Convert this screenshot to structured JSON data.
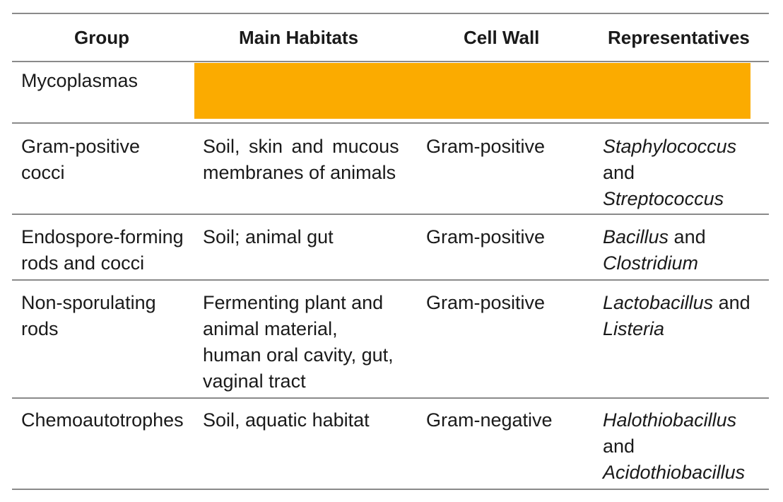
{
  "headers": {
    "group": "Group",
    "habitats": "Main Habitats",
    "cell_wall": "Cell Wall",
    "representatives": "Representatives"
  },
  "rows": [
    {
      "group": [
        "Mycoplasmas"
      ],
      "hidden": true
    },
    {
      "group": [
        "Gram-positive",
        "cocci"
      ],
      "habitats": [
        "Soil, skin and mucous",
        "membranes of animals"
      ],
      "cell_wall": "Gram-positive",
      "rep": {
        "line1_it": "Staphylococcus",
        "line1": "",
        "line2_it": "",
        "line2": "and",
        "line3_it": "Streptococcus",
        "line3": ""
      }
    },
    {
      "group": [
        "Endospore-forming",
        "rods and cocci"
      ],
      "habitats": [
        "Soil; animal gut"
      ],
      "cell_wall": "Gram-positive",
      "rep": {
        "line1_it": "Bacillus",
        "line1": " and",
        "line2_it": "Clostridium",
        "line2": ""
      }
    },
    {
      "group": [
        "Non-sporulating",
        "rods"
      ],
      "habitats": [
        "Fermenting plant and",
        "animal material,",
        "human oral cavity, gut,",
        "vaginal tract"
      ],
      "cell_wall": "Gram-positive",
      "rep": {
        "line1_it": "Lactobacillus",
        "line1": " and",
        "line2_it": "Listeria",
        "line2": ""
      }
    },
    {
      "group": [
        "Chemoautotrophes"
      ],
      "habitats": [
        "Soil, aquatic habitat"
      ],
      "cell_wall": "Gram-negative",
      "rep": {
        "line1_it": "Halothiobacillus",
        "line1": "",
        "line2_it": "",
        "line2": "and",
        "line3_it": "Acidothiobacillus",
        "line3": ""
      }
    }
  ],
  "colors": {
    "hidden_bar": "#fbab00",
    "rules": "#8a8a8a"
  }
}
